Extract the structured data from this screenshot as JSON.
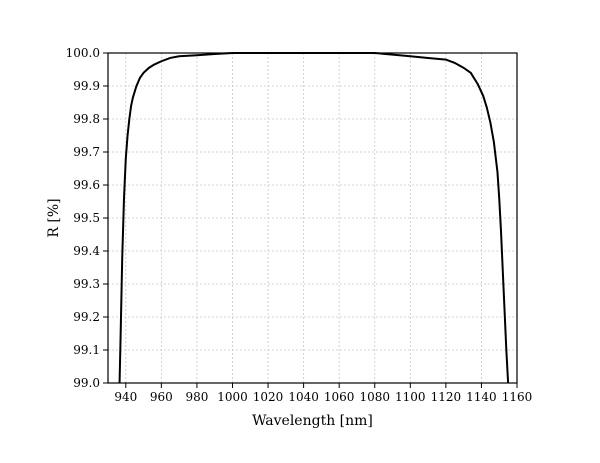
{
  "chart_data": {
    "type": "line",
    "title": "",
    "xlabel": "Wavelength [nm]",
    "ylabel": "R [%]",
    "xlim": [
      930,
      1160
    ],
    "ylim": [
      99.0,
      100.0
    ],
    "x_ticks": [
      940,
      960,
      980,
      1000,
      1020,
      1040,
      1060,
      1080,
      1100,
      1120,
      1140,
      1160
    ],
    "y_ticks": [
      "99.0",
      "99.1",
      "99.2",
      "99.3",
      "99.4",
      "99.5",
      "99.6",
      "99.7",
      "99.8",
      "99.9",
      "100.0"
    ],
    "grid": true,
    "legend": "none",
    "line_color": "#000000",
    "grid_color": "#c8c8c8",
    "series": [
      {
        "x": [
          936.5,
          937,
          938,
          939,
          940,
          941,
          942,
          943,
          944,
          946,
          948,
          950,
          953,
          956,
          960,
          965,
          970,
          980,
          990,
          1000,
          1020,
          1040,
          1060,
          1080,
          1090,
          1100,
          1110,
          1120,
          1125,
          1130,
          1134,
          1138,
          1141,
          1143,
          1145,
          1147,
          1149,
          1150,
          1151,
          1152,
          1153,
          1154,
          1155
        ],
        "y": [
          99.0,
          99.12,
          99.38,
          99.56,
          99.68,
          99.75,
          99.8,
          99.84,
          99.865,
          99.9,
          99.925,
          99.94,
          99.955,
          99.965,
          99.975,
          99.985,
          99.99,
          99.993,
          99.997,
          100.0,
          100.0,
          100.0,
          100.0,
          100.0,
          99.995,
          99.99,
          99.985,
          99.98,
          99.97,
          99.955,
          99.94,
          99.905,
          99.87,
          99.835,
          99.79,
          99.73,
          99.64,
          99.56,
          99.46,
          99.34,
          99.22,
          99.1,
          99.0
        ]
      }
    ]
  }
}
